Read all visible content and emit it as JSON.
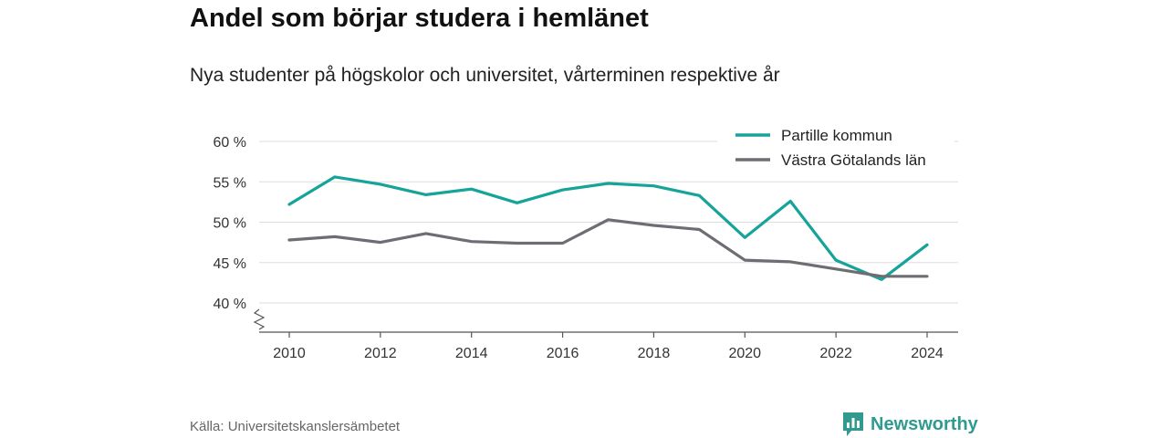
{
  "header": {
    "title": "Andel som börjar studera i hemlänet",
    "subtitle": "Nya studenter på högskolor och universitet, vårterminen respektive år"
  },
  "footer": {
    "source": "Källa: Universitetskanslersämbetet",
    "brand": "Newsworthy",
    "brand_icon": "newsworthy-logo-icon"
  },
  "colors": {
    "partille": "#16a399",
    "vgl": "#6e6d73",
    "grid": "#dddddd",
    "axis": "#555555",
    "brand": "#2f9a8e"
  },
  "chart_data": {
    "type": "line",
    "x": [
      2010,
      2011,
      2012,
      2013,
      2014,
      2015,
      2016,
      2017,
      2018,
      2019,
      2020,
      2021,
      2022,
      2023,
      2024
    ],
    "series": [
      {
        "name": "Partille kommun",
        "color": "#16a399",
        "values": [
          52.2,
          55.6,
          54.7,
          53.4,
          54.1,
          52.4,
          54.0,
          54.8,
          54.5,
          53.3,
          48.1,
          52.6,
          45.3,
          42.9,
          47.2
        ]
      },
      {
        "name": "Västra Götalands län",
        "color": "#6e6d73",
        "values": [
          47.8,
          48.2,
          47.5,
          48.6,
          47.6,
          47.4,
          47.4,
          50.3,
          49.6,
          49.1,
          45.3,
          45.1,
          44.2,
          43.3,
          43.3
        ]
      }
    ],
    "y_ticks": [
      40,
      45,
      50,
      55,
      60
    ],
    "y_tick_labels": [
      "40 %",
      "45 %",
      "50 %",
      "55 %",
      "60 %"
    ],
    "x_ticks": [
      2010,
      2012,
      2014,
      2016,
      2018,
      2020,
      2022,
      2024
    ],
    "x_tick_labels": [
      "2010",
      "2012",
      "2014",
      "2016",
      "2018",
      "2020",
      "2022",
      "2024"
    ],
    "ylim": [
      40,
      60
    ],
    "xlim": [
      2010,
      2024
    ],
    "y_axis_break": true,
    "grid": true,
    "legend_position": "top-right",
    "xlabel": "",
    "ylabel": ""
  }
}
